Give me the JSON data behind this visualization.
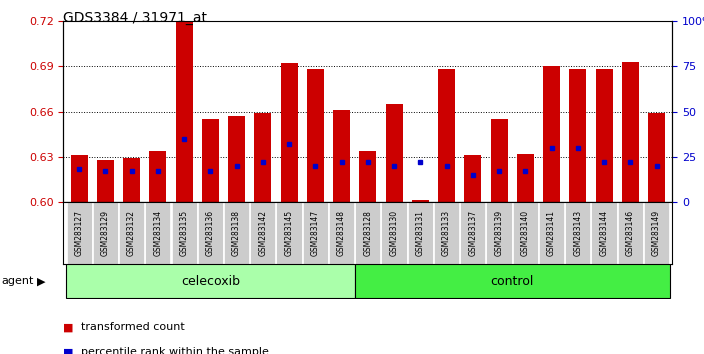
{
  "title": "GDS3384 / 31971_at",
  "samples": [
    "GSM283127",
    "GSM283129",
    "GSM283132",
    "GSM283134",
    "GSM283135",
    "GSM283136",
    "GSM283138",
    "GSM283142",
    "GSM283145",
    "GSM283147",
    "GSM283148",
    "GSM283128",
    "GSM283130",
    "GSM283131",
    "GSM283133",
    "GSM283137",
    "GSM283139",
    "GSM283140",
    "GSM283141",
    "GSM283143",
    "GSM283144",
    "GSM283146",
    "GSM283149"
  ],
  "red_values": [
    0.631,
    0.628,
    0.629,
    0.634,
    0.72,
    0.655,
    0.657,
    0.659,
    0.692,
    0.688,
    0.661,
    0.634,
    0.665,
    0.601,
    0.688,
    0.631,
    0.655,
    0.632,
    0.69,
    0.688,
    0.688,
    0.693,
    0.659
  ],
  "blue_percentiles": [
    18,
    17,
    17,
    17,
    35,
    17,
    20,
    22,
    32,
    20,
    22,
    22,
    20,
    22,
    20,
    15,
    17,
    17,
    30,
    30,
    22,
    22,
    20
  ],
  "celecoxib_count": 11,
  "control_count": 12,
  "ymin": 0.6,
  "ymax": 0.72,
  "bar_color": "#CC0000",
  "dot_color": "#0000CC",
  "celecoxib_color": "#AAFFAA",
  "control_color": "#44EE44",
  "agent_label": "agent",
  "celecoxib_label": "celecoxib",
  "control_label": "control",
  "legend_red": "transformed count",
  "legend_blue": "percentile rank within the sample",
  "tick_color_left": "#CC0000",
  "tick_color_right": "#0000CC",
  "label_bg": "#CCCCCC"
}
